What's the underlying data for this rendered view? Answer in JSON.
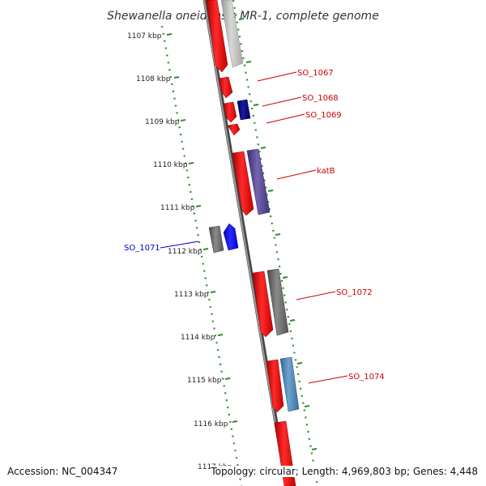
{
  "title": "Shewanella oneidensis MR-1, complete genome",
  "accession": "Accession: NC_004347",
  "summary": "Topology: circular; Length: 4,969,803 bp; Genes: 4,448",
  "ticks": [
    "1107 kbp",
    "1108 kbp",
    "1109 kbp",
    "1110 kbp",
    "1111 kbp",
    "1112 kbp",
    "1113 kbp",
    "1114 kbp",
    "1115 kbp",
    "1116 kbp",
    "1117 kbp"
  ],
  "gene_labels": [
    {
      "id": "so1067",
      "text": "SO_1067",
      "color": "#cc0000"
    },
    {
      "id": "so1068",
      "text": "SO_1068",
      "color": "#cc0000"
    },
    {
      "id": "so1069",
      "text": "SO_1069",
      "color": "#cc0000"
    },
    {
      "id": "katb",
      "text": "katB",
      "color": "#cc0000"
    },
    {
      "id": "so1071",
      "text": "SO_1071",
      "color": "#0000cc"
    },
    {
      "id": "so1072",
      "text": "SO_1072",
      "color": "#cc0000"
    },
    {
      "id": "so1074",
      "text": "SO_1074",
      "color": "#cc0000"
    }
  ],
  "colors": {
    "cds": "#ff0000",
    "backbone": "#777777",
    "tick": "#2e8b2e",
    "gene_gray": "#6d6d6d",
    "gene_light_gray": "#c3c3c3",
    "gene_navy": "#000080",
    "gene_purple": "#5a4a96",
    "gene_blue": "#0a0aff",
    "gene_steel": "#4f86b8"
  }
}
